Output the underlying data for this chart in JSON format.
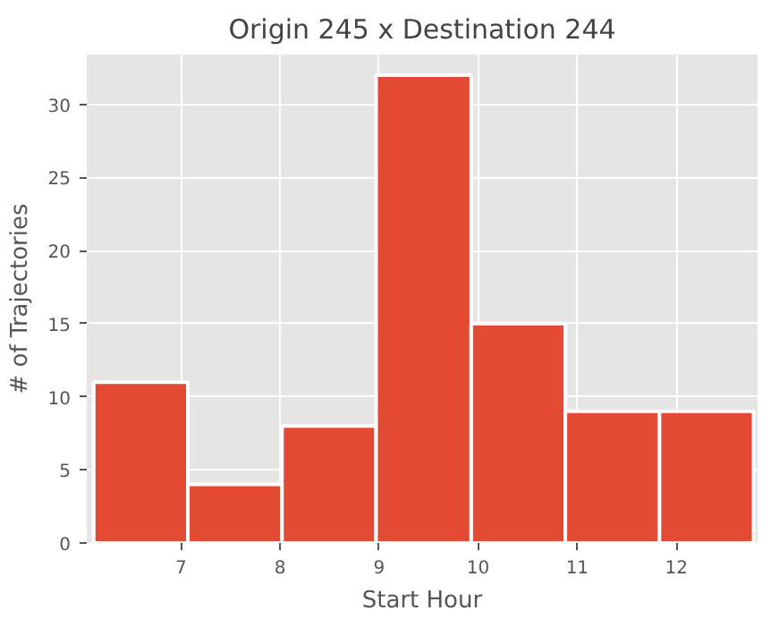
{
  "chart_data": {
    "type": "histogram",
    "title": "Origin 245 x Destination 244",
    "xlabel": "Start Hour",
    "ylabel": "# of Trajectories",
    "bins": [
      6.12,
      7.07,
      8.02,
      8.97,
      9.93,
      10.88,
      11.83,
      12.78
    ],
    "values": [
      11,
      4,
      8,
      32,
      15,
      9,
      9
    ],
    "color": "#e24a33",
    "xlim": [
      6.05,
      12.82
    ],
    "ylim": [
      0,
      33.4
    ],
    "xticks": [
      7,
      8,
      9,
      10,
      11,
      12
    ],
    "yticks": [
      0,
      5,
      10,
      15,
      20,
      25,
      30
    ],
    "grid": true
  }
}
